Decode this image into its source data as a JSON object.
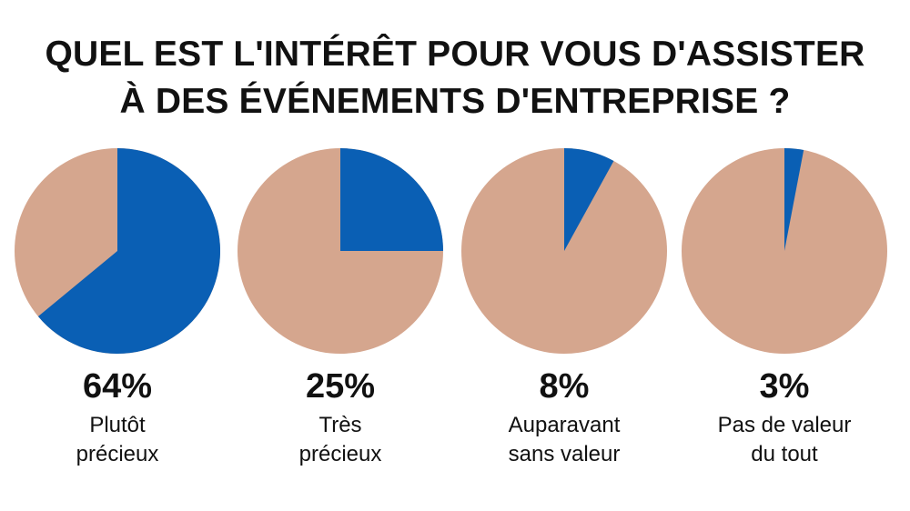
{
  "chart_data": {
    "type": "pie",
    "title_lines": [
      "QUEL EST L'INTÉRÊT POUR VOUS D'ASSISTER",
      "À DES ÉVÉNEMENTS D'ENTREPRISE ?"
    ],
    "highlight_color": "#0a5fb4",
    "rest_color": "#d5a68e",
    "pies": [
      {
        "value": 64,
        "percent_label": "64%",
        "label_lines": [
          "Plutôt",
          "précieux"
        ]
      },
      {
        "value": 25,
        "percent_label": "25%",
        "label_lines": [
          "Très",
          "précieux"
        ]
      },
      {
        "value": 8,
        "percent_label": "8%",
        "label_lines": [
          "Auparavant",
          "sans valeur"
        ]
      },
      {
        "value": 3,
        "percent_label": "3%",
        "label_lines": [
          "Pas de valeur",
          "du tout"
        ]
      }
    ]
  }
}
